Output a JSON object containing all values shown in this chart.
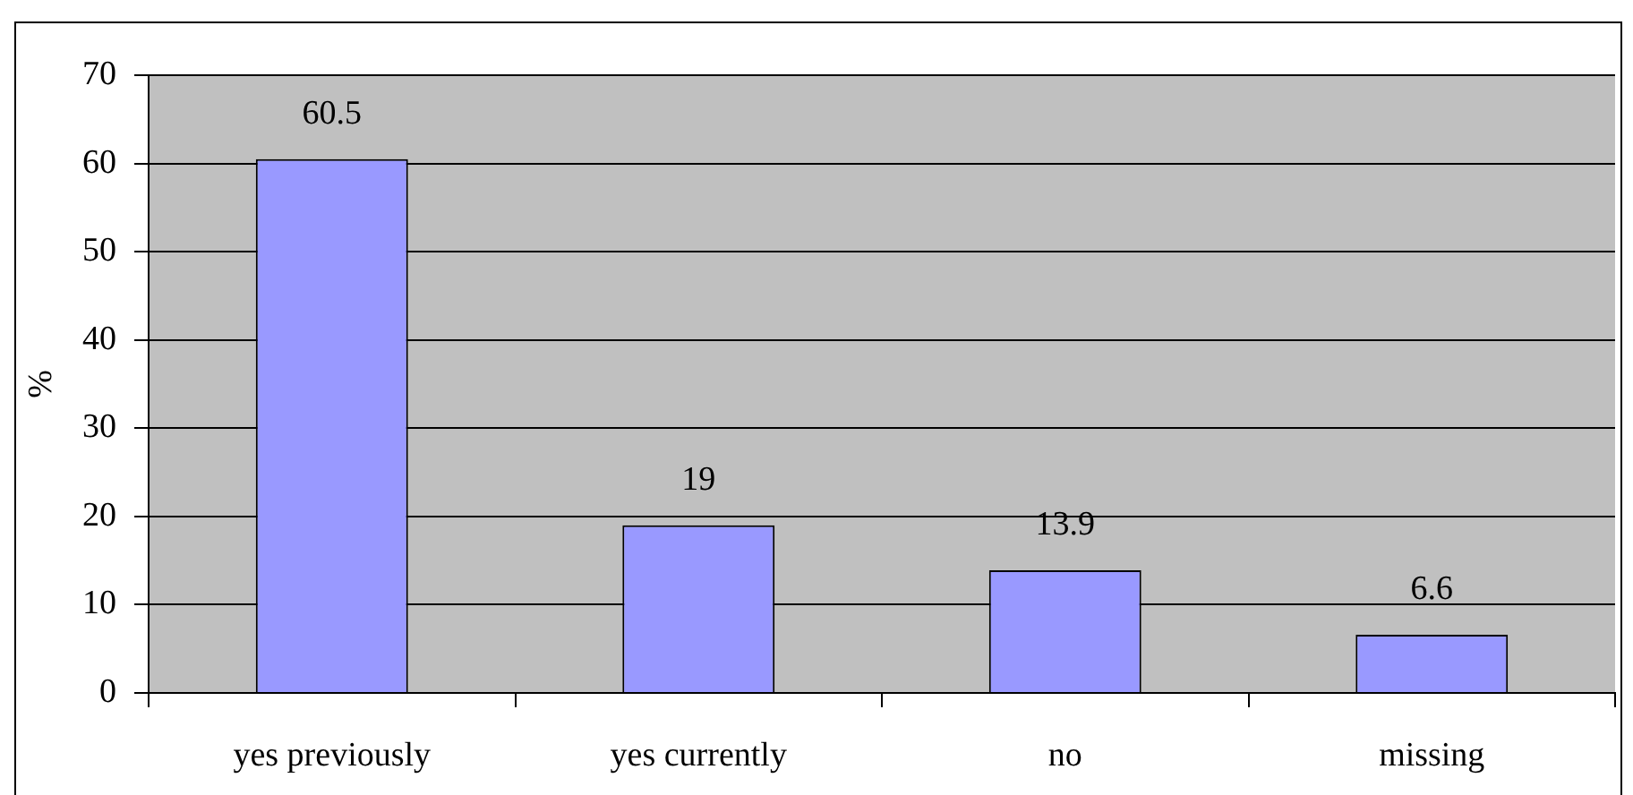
{
  "chart_data": {
    "type": "bar",
    "ylabel": "%",
    "categories": [
      "yes previously",
      "yes currently",
      "no",
      "missing"
    ],
    "values": [
      60.5,
      19,
      13.9,
      6.6
    ],
    "color": "#9999ff",
    "ylim": [
      0,
      70
    ],
    "yticks": [
      0,
      10,
      20,
      30,
      40,
      50,
      60,
      70
    ],
    "grid": "y",
    "data_labels": true
  }
}
